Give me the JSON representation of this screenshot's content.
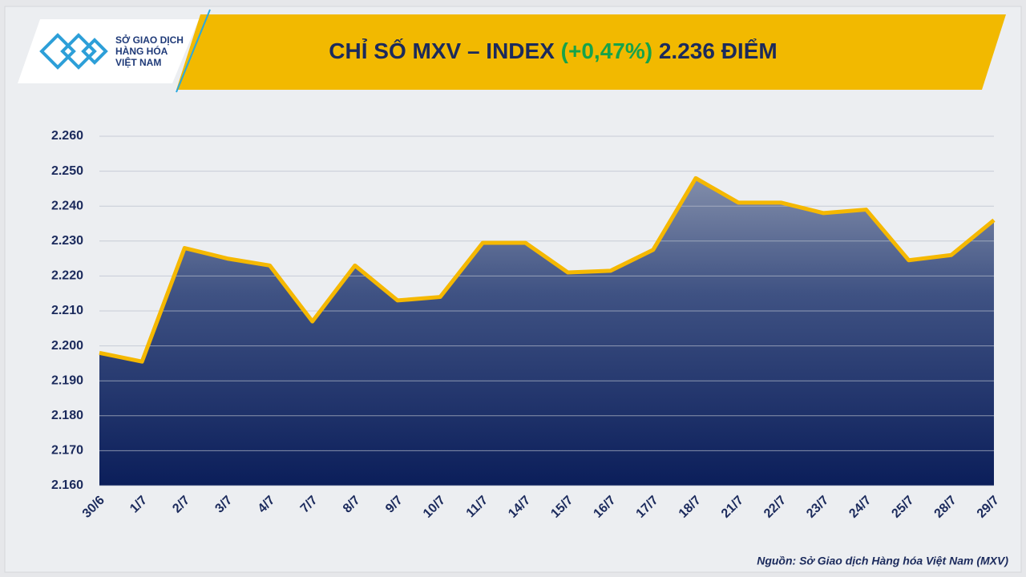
{
  "chart_data": {
    "type": "area",
    "logo": [
      "SỞ GIAO DỊCH",
      "HÀNG HÓA",
      "VIỆT NAM"
    ],
    "title": [
      "CHỈ SỐ MXV – INDEX",
      "(+0,47%)",
      "2.236 ĐIỂM"
    ],
    "categories": [
      "30/6",
      "1/7",
      "2/7",
      "3/7",
      "4/7",
      "7/7",
      "8/7",
      "9/7",
      "10/7",
      "11/7",
      "14/7",
      "15/7",
      "16/7",
      "17/7",
      "18/7",
      "21/7",
      "22/7",
      "23/7",
      "24/7",
      "25/7",
      "28/7",
      "29/7"
    ],
    "values": [
      2198,
      2195.5,
      2228,
      2225,
      2223,
      2207,
      2223,
      2213,
      2214,
      2229.5,
      2229.5,
      2221,
      2221.5,
      2227.5,
      2248,
      2241,
      2241,
      2238,
      2239,
      2224.5,
      2226,
      2236
    ],
    "color": "#f5b800",
    "ylim": [
      2160,
      2260
    ],
    "yticks": [
      {
        "value": 2160,
        "label": "2.160"
      },
      {
        "value": 2170,
        "label": "2.170"
      },
      {
        "value": 2180,
        "label": "2.180"
      },
      {
        "value": 2190,
        "label": "2.190"
      },
      {
        "value": 2200,
        "label": "2.200"
      },
      {
        "value": 2210,
        "label": "2.210"
      },
      {
        "value": 2220,
        "label": "2.220"
      },
      {
        "value": 2230,
        "label": "2.230"
      },
      {
        "value": 2240,
        "label": "2.240"
      },
      {
        "value": 2250,
        "label": "2.250"
      },
      {
        "value": 2260,
        "label": "2.260"
      }
    ],
    "grid": true,
    "source": "Nguồn: Sở Giao dịch Hàng hóa Việt Nam (MXV)"
  }
}
